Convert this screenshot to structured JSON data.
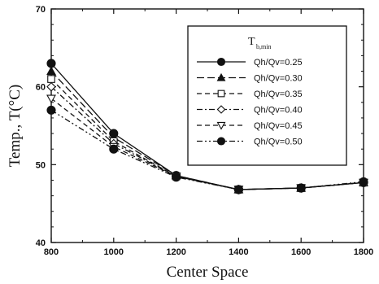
{
  "chart_data": {
    "type": "line",
    "xlabel": "Center Space",
    "ylabel": "Temp., T(°C)",
    "xlim": [
      800,
      1800
    ],
    "ylim": [
      40,
      70
    ],
    "xticks": [
      800,
      1000,
      1200,
      1400,
      1600,
      1800
    ],
    "yticks": [
      40,
      50,
      60,
      70
    ],
    "grid": false,
    "legend_position": "top-right",
    "legend_title": "T",
    "legend_title_sub": "b,min",
    "x": [
      800,
      1000,
      1200,
      1400,
      1600,
      1800
    ],
    "series": [
      {
        "name": "Qh/Qv=0.25",
        "marker": "circle-filled",
        "dash": "solid",
        "values": [
          63.0,
          54.0,
          48.6,
          46.8,
          47.0,
          47.7
        ]
      },
      {
        "name": "Qh/Qv=0.30",
        "marker": "triangle-filled",
        "dash": "long-dash",
        "values": [
          62.0,
          53.5,
          48.6,
          46.8,
          47.0,
          47.7
        ]
      },
      {
        "name": "Qh/Qv=0.35",
        "marker": "square-open",
        "dash": "dash",
        "values": [
          61.0,
          53.0,
          48.5,
          46.8,
          47.0,
          47.7
        ]
      },
      {
        "name": "Qh/Qv=0.40",
        "marker": "diamond-open",
        "dash": "dash-dot",
        "values": [
          60.0,
          52.7,
          48.5,
          46.8,
          47.0,
          47.7
        ]
      },
      {
        "name": "Qh/Qv=0.45",
        "marker": "triangle-down-open",
        "dash": "dash",
        "values": [
          58.5,
          52.3,
          48.5,
          46.8,
          47.0,
          47.7
        ]
      },
      {
        "name": "Qh/Qv=0.50",
        "marker": "circle-filled",
        "dash": "dash-dot-dot",
        "values": [
          57.0,
          52.0,
          48.4,
          46.8,
          47.0,
          47.8
        ]
      }
    ]
  }
}
